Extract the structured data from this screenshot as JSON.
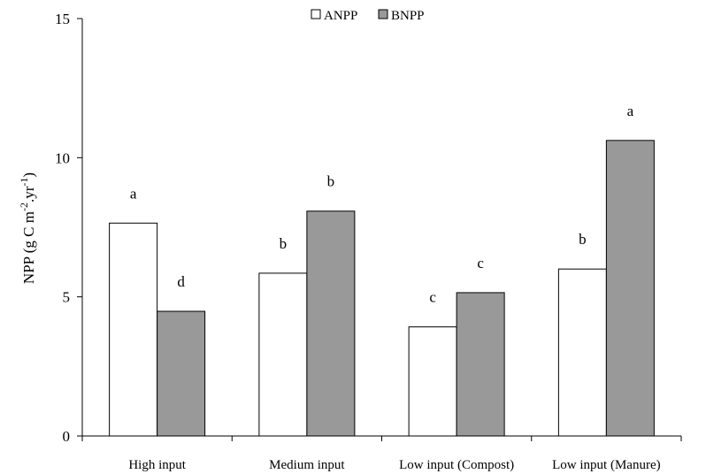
{
  "chart_data": {
    "type": "bar",
    "categories": [
      "High input",
      "Medium input",
      "Low input (Compost)",
      "Low input (Manure)"
    ],
    "series": [
      {
        "name": "ANPP",
        "values": [
          7.65,
          5.85,
          3.92,
          6.0
        ],
        "letters": [
          "a",
          "b",
          "c",
          "b"
        ],
        "color": "#ffffff"
      },
      {
        "name": "BNPP",
        "values": [
          4.48,
          8.08,
          5.15,
          10.62
        ],
        "letters": [
          "d",
          "b",
          "c",
          "a"
        ],
        "color": "#999999"
      }
    ],
    "ylim": [
      0,
      15
    ],
    "yticks": [
      0,
      5,
      10,
      15
    ],
    "ylabel": {
      "base": "NPP (g C m",
      "sup1": "-2",
      "mid": ".yr",
      "sup2": "-1",
      "end": ")"
    },
    "xlabel": "",
    "title": "",
    "legend_position": "top-center",
    "grid": false
  }
}
